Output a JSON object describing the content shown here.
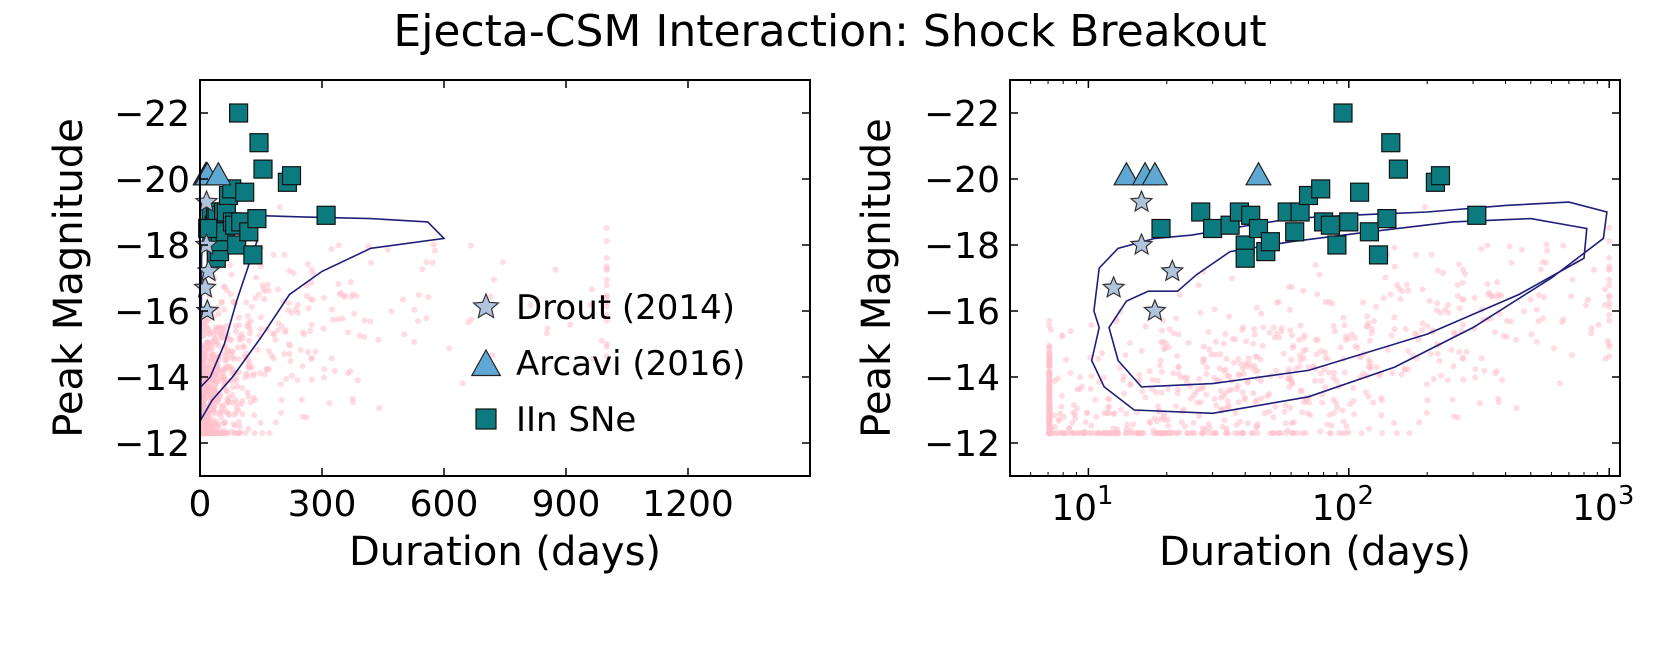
{
  "suptitle": "Ejecta-CSM Interaction: Shock Breakout",
  "colors": {
    "cloud": "#ffc0cb",
    "contour": "#1f1f7a",
    "star": "#b0c4de",
    "triangle": "#5fa8d3",
    "square": "#0b7b7f"
  },
  "legend": {
    "entries": [
      {
        "label": "Drout (2014)",
        "marker": "star"
      },
      {
        "label": "Arcavi (2016)",
        "marker": "triangle"
      },
      {
        "label": "IIn SNe",
        "marker": "square"
      }
    ]
  },
  "chart_data": [
    {
      "type": "scatter",
      "panel": "left",
      "xlabel": "Duration (days)",
      "ylabel": "Peak Magnitude",
      "xscale": "linear",
      "xlim": [
        0,
        1500
      ],
      "ylim": [
        -11,
        -23
      ],
      "xticks": [
        {
          "value": 0,
          "label": "0"
        },
        {
          "value": 300,
          "label": "300"
        },
        {
          "value": 600,
          "label": "600"
        },
        {
          "value": 900,
          "label": "900"
        },
        {
          "value": 1200,
          "label": "1200"
        }
      ],
      "yticks": [
        {
          "value": -22,
          "label": "−22"
        },
        {
          "value": -20,
          "label": "−20"
        },
        {
          "value": -18,
          "label": "−18"
        },
        {
          "value": -16,
          "label": "−16"
        },
        {
          "value": -14,
          "label": "−14"
        },
        {
          "value": -12,
          "label": "−12"
        }
      ],
      "legend_placement": "lower-right",
      "grid": false
    },
    {
      "type": "scatter",
      "panel": "right",
      "xlabel": "Duration (days)",
      "ylabel": "Peak Magnitude",
      "xscale": "log",
      "xlim": [
        5,
        1100
      ],
      "ylim": [
        -11,
        -23
      ],
      "xticks": [
        {
          "value": 10,
          "base": "10",
          "exp": "1"
        },
        {
          "value": 100,
          "base": "10",
          "exp": "2"
        },
        {
          "value": 1000,
          "base": "10",
          "exp": "3"
        }
      ],
      "yticks": [
        {
          "value": -22,
          "label": "−22"
        },
        {
          "value": -20,
          "label": "−20"
        },
        {
          "value": -18,
          "label": "−18"
        },
        {
          "value": -16,
          "label": "−16"
        },
        {
          "value": -14,
          "label": "−14"
        },
        {
          "value": -12,
          "label": "−12"
        }
      ],
      "grid": false
    }
  ],
  "series": {
    "drout": {
      "name": "Drout (2014)",
      "x": [
        12.5,
        16,
        16,
        18,
        21
      ],
      "y": [
        -16.7,
        -19.3,
        -18.0,
        -16.0,
        -17.2
      ]
    },
    "arcavi": {
      "name": "Arcavi (2016)",
      "x": [
        14,
        16.5,
        18,
        45
      ],
      "y": [
        -20.1,
        -20.1,
        -20.1,
        -20.1
      ]
    },
    "iin": {
      "name": "IIn SNe",
      "x": [
        95,
        145,
        155,
        215,
        225,
        310,
        27,
        30,
        35,
        38,
        40,
        40,
        42,
        45,
        48,
        50,
        58,
        62,
        65,
        70,
        78,
        80,
        85,
        90,
        100,
        110,
        120,
        130,
        140,
        19
      ],
      "y": [
        -22.0,
        -21.1,
        -20.3,
        -19.9,
        -20.1,
        -18.9,
        -19.0,
        -18.5,
        -18.6,
        -19.0,
        -18.0,
        -17.6,
        -18.9,
        -18.5,
        -17.8,
        -18.1,
        -19.0,
        -18.4,
        -19.0,
        -19.5,
        -19.7,
        -18.7,
        -18.6,
        -18.0,
        -18.7,
        -19.6,
        -18.4,
        -17.7,
        -18.8,
        -18.5
      ]
    },
    "contours": {
      "outer_log": [
        [
          10.5,
          -16.0
        ],
        [
          11,
          -15.5
        ],
        [
          10.3,
          -14.5
        ],
        [
          11.5,
          -13.7
        ],
        [
          15,
          -13.0
        ],
        [
          30,
          -12.9
        ],
        [
          70,
          -13.4
        ],
        [
          150,
          -14.3
        ],
        [
          300,
          -15.5
        ],
        [
          600,
          -17.0
        ],
        [
          950,
          -18.2
        ],
        [
          980,
          -19.0
        ],
        [
          700,
          -19.3
        ],
        [
          400,
          -19.2
        ],
        [
          200,
          -19.0
        ],
        [
          100,
          -18.9
        ],
        [
          60,
          -18.8
        ],
        [
          35,
          -18.5
        ],
        [
          25,
          -18.3
        ],
        [
          18,
          -18.2
        ],
        [
          13,
          -17.9
        ],
        [
          11,
          -17.3
        ],
        [
          10.5,
          -16.0
        ]
      ],
      "inner_log": [
        [
          13,
          -14.5
        ],
        [
          16,
          -13.7
        ],
        [
          30,
          -13.8
        ],
        [
          70,
          -14.2
        ],
        [
          200,
          -15.3
        ],
        [
          450,
          -16.5
        ],
        [
          800,
          -17.6
        ],
        [
          820,
          -18.5
        ],
        [
          500,
          -18.8
        ],
        [
          250,
          -18.7
        ],
        [
          120,
          -18.4
        ],
        [
          60,
          -18.1
        ],
        [
          35,
          -17.8
        ],
        [
          26,
          -17.1
        ],
        [
          22,
          -16.6
        ],
        [
          17,
          -16.6
        ],
        [
          14,
          -16.3
        ],
        [
          12,
          -15.5
        ],
        [
          13,
          -14.5
        ]
      ],
      "outer_lin": [
        [
          2,
          -12.7
        ],
        [
          30,
          -13.3
        ],
        [
          80,
          -14.0
        ],
        [
          150,
          -15.2
        ],
        [
          220,
          -16.5
        ],
        [
          300,
          -17.2
        ],
        [
          420,
          -17.9
        ],
        [
          600,
          -18.2
        ],
        [
          560,
          -18.7
        ],
        [
          420,
          -18.8
        ],
        [
          250,
          -18.85
        ],
        [
          120,
          -18.9
        ],
        [
          50,
          -18.9
        ],
        [
          20,
          -18.8
        ],
        [
          8,
          -18.3
        ],
        [
          2,
          -17.5
        ],
        [
          2,
          -12.7
        ]
      ],
      "inner_lin": [
        [
          2,
          -13.7
        ],
        [
          25,
          -14.0
        ],
        [
          60,
          -15.0
        ],
        [
          90,
          -16.3
        ],
        [
          120,
          -17.4
        ],
        [
          140,
          -18.1
        ],
        [
          100,
          -18.5
        ],
        [
          45,
          -18.6
        ],
        [
          15,
          -18.4
        ],
        [
          4,
          -17.7
        ],
        [
          2,
          -13.7
        ]
      ]
    }
  }
}
